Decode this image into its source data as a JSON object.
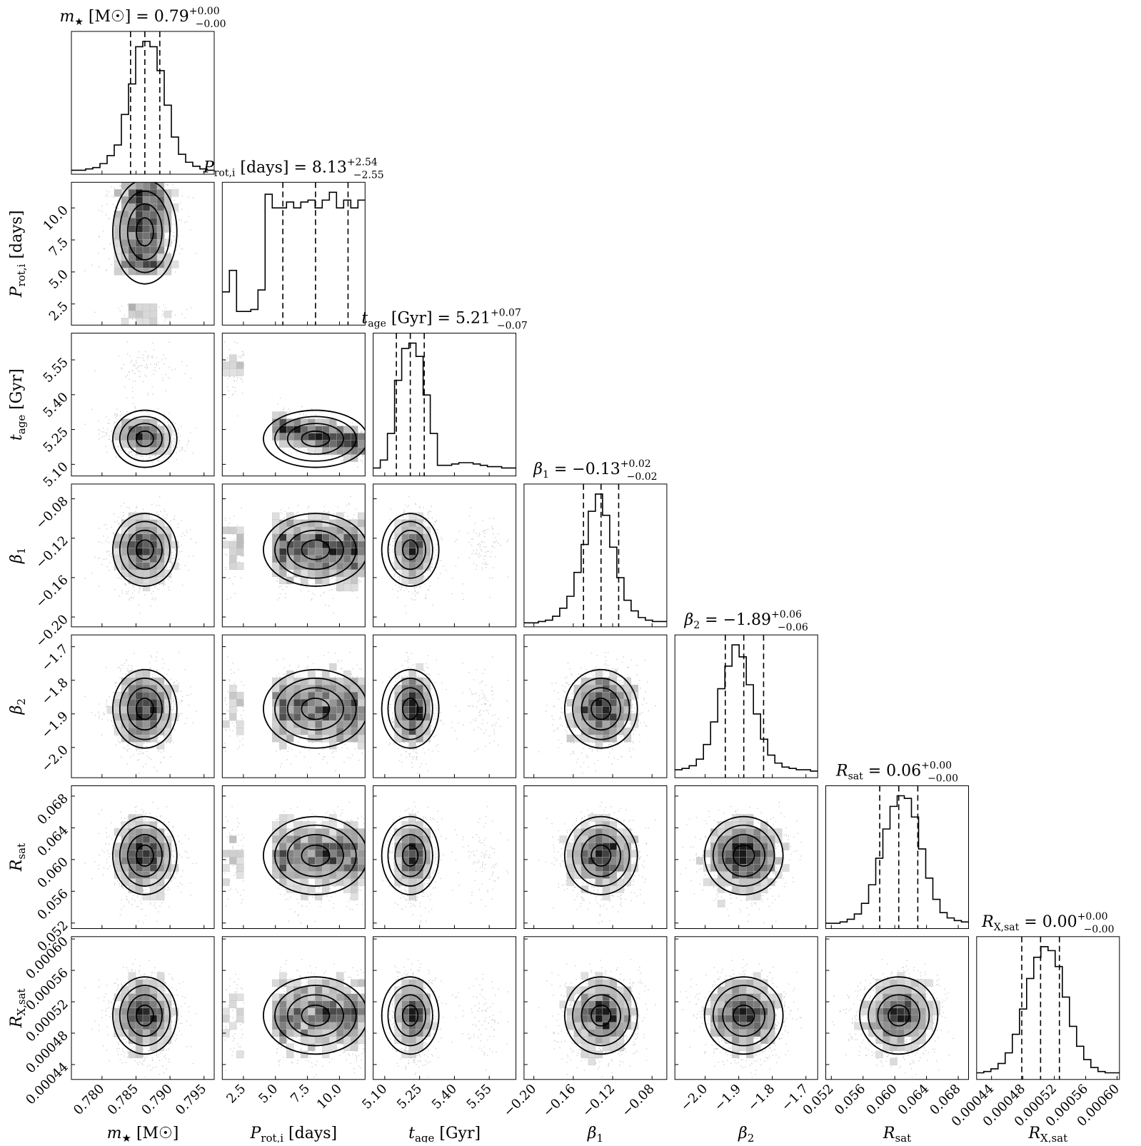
{
  "chart_data": {
    "type": "corner",
    "parameters": [
      {
        "key": "m",
        "label_main": "m",
        "label_sub": "★",
        "label_unit": " [M☉]",
        "title_main": "m",
        "title_sub": "★",
        "title_unit": " [M☉]",
        "title_value": " = 0.79",
        "title_sup": "+0.00",
        "title_inf": "−0.00",
        "xlim": [
          0.7755,
          0.7965
        ],
        "ticks": [
          0.78,
          0.785,
          0.79,
          0.795
        ],
        "tick_labels": [
          "0.780",
          "0.785",
          "0.790",
          "0.795"
        ],
        "median": 0.7863,
        "q16": 0.7842,
        "q84": 0.7885,
        "sd": 0.0023
      },
      {
        "key": "prot",
        "label_main": "P",
        "label_sub": "rot,i",
        "label_unit": " [days]",
        "title_main": "P",
        "title_sub": "rot,i",
        "title_unit": " [days]",
        "title_value": " = 8.13",
        "title_sup": "+2.54",
        "title_inf": "−2.55",
        "xlim": [
          0.85,
          12.0
        ],
        "ticks": [
          2.5,
          5.0,
          7.5,
          10.0
        ],
        "tick_labels": [
          "2.5",
          "5.0",
          "7.5",
          "10.0"
        ],
        "median": 8.13,
        "q16": 5.58,
        "q84": 10.67
      },
      {
        "key": "tage",
        "label_main": "t",
        "label_sub": "age",
        "label_unit": " [Gyr]",
        "title_main": "t",
        "title_sub": "age",
        "title_unit": " [Gyr]",
        "title_value": " = 5.21",
        "title_sup": "+0.07",
        "title_inf": "−0.07",
        "xlim": [
          5.05,
          5.665
        ],
        "ticks": [
          5.1,
          5.25,
          5.4,
          5.55
        ],
        "tick_labels": [
          "5.10",
          "5.25",
          "5.40",
          "5.55"
        ],
        "median": 5.21,
        "q16": 5.15,
        "q84": 5.27
      },
      {
        "key": "b1",
        "label_main": "β",
        "label_sub": "1",
        "label_unit": "",
        "title_main": "β",
        "title_sub": "1",
        "title_unit": "",
        "title_value": " = −0.13",
        "title_sup": "+0.02",
        "title_inf": "−0.02",
        "xlim": [
          -0.21,
          -0.065
        ],
        "ticks": [
          -0.2,
          -0.16,
          -0.12,
          -0.08
        ],
        "tick_labels": [
          "−0.20",
          "−0.16",
          "−0.12",
          "−0.08"
        ],
        "median": -0.1318,
        "q16": -0.1496,
        "q84": -0.1139,
        "sd": 0.018
      },
      {
        "key": "b2",
        "label_main": "β",
        "label_sub": "2",
        "label_unit": "",
        "title_main": "β",
        "title_sub": "2",
        "title_unit": "",
        "title_value": " = −1.89",
        "title_sup": "+0.06",
        "title_inf": "−0.06",
        "xlim": [
          -2.09,
          -1.665
        ],
        "ticks": [
          -2.0,
          -1.9,
          -1.8,
          -1.7
        ],
        "tick_labels": [
          "−2.0",
          "−1.9",
          "−1.8",
          "−1.7"
        ],
        "median": -1.885,
        "q16": -1.94,
        "q84": -1.826,
        "sd": 0.057
      },
      {
        "key": "rsat",
        "label_main": "R",
        "label_sub": "sat",
        "label_unit": "",
        "title_main": "R",
        "title_sub": "sat",
        "title_unit": "",
        "title_value": " = 0.06",
        "title_sup": "+0.00",
        "title_inf": "−0.00",
        "xlim": [
          0.0513,
          0.0693
        ],
        "ticks": [
          0.052,
          0.056,
          0.06,
          0.064,
          0.068
        ],
        "tick_labels": [
          "0.052",
          "0.056",
          "0.060",
          "0.064",
          "0.068"
        ],
        "median": 0.0605,
        "q16": 0.0581,
        "q84": 0.0629,
        "sd": 0.0024
      },
      {
        "key": "rx",
        "label_main": "R",
        "label_sub": "X,sat",
        "label_unit": "",
        "title_main": "R",
        "title_sub": "X,sat",
        "title_unit": "",
        "title_value": " = 0.00",
        "title_sup": "+0.00",
        "title_inf": "−0.00",
        "xlim": [
          0.000421,
          0.000603
        ],
        "ticks": [
          0.00044,
          0.00048,
          0.00052,
          0.00056,
          0.0006
        ],
        "tick_labels": [
          "0.00044",
          "0.00048",
          "0.00052",
          "0.00056",
          "0.00060"
        ],
        "median": 0.0005025,
        "q16": 0.0004785,
        "q84": 0.0005265,
        "sd": 2.4e-05
      }
    ],
    "histogram_bins": {
      "m": [
        3,
        3,
        4,
        5,
        8,
        14,
        22,
        45,
        68,
        96,
        100,
        96,
        78,
        52,
        28,
        15,
        9,
        6,
        4,
        3
      ],
      "prot": [
        17,
        28,
        7,
        7,
        8,
        18,
        67,
        60,
        60,
        63,
        60,
        63,
        64,
        60,
        64,
        68,
        60,
        64,
        60,
        64
      ],
      "tage": [
        6,
        12,
        32,
        72,
        96,
        100,
        90,
        61,
        32,
        8,
        8,
        9,
        10,
        10,
        9,
        8,
        7,
        7,
        6,
        6
      ],
      "b1": [
        3,
        3,
        4,
        5,
        8,
        14,
        23,
        41,
        62,
        87,
        100,
        84,
        60,
        37,
        20,
        12,
        7,
        5,
        4,
        4
      ],
      "b2": [
        6,
        7,
        9,
        14,
        25,
        42,
        67,
        84,
        100,
        91,
        70,
        48,
        29,
        17,
        11,
        8,
        7,
        6,
        6,
        5
      ],
      "rsat": [
        4,
        4,
        5,
        7,
        11,
        19,
        33,
        53,
        75,
        92,
        100,
        98,
        84,
        60,
        38,
        22,
        12,
        8,
        6,
        5
      ],
      "rx": [
        5,
        6,
        8,
        12,
        20,
        34,
        53,
        76,
        92,
        100,
        97,
        85,
        62,
        40,
        25,
        15,
        9,
        6,
        5,
        5
      ]
    }
  }
}
